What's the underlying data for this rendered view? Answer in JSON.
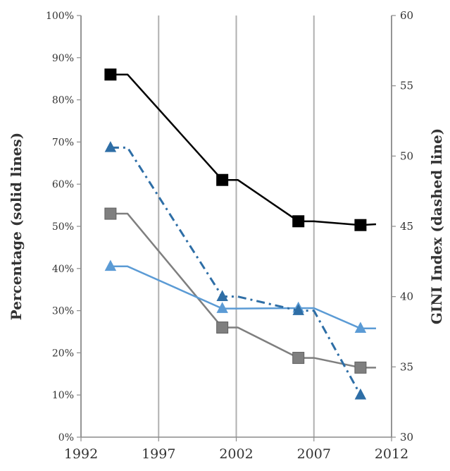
{
  "chart_data": {
    "type": "line",
    "xlim": [
      1992,
      2012
    ],
    "xticks": [
      1992,
      1997,
      2002,
      2007,
      2012
    ],
    "y_left": {
      "label": "Percentage (solid lines)",
      "range": [
        0,
        100
      ],
      "ticks": [
        0,
        10,
        20,
        30,
        40,
        50,
        60,
        70,
        80,
        90,
        100
      ],
      "tick_labels": [
        "0%",
        "10%",
        "20%",
        "30%",
        "40%",
        "50%",
        "60%",
        "70%",
        "80%",
        "90%",
        "100%"
      ]
    },
    "y_right": {
      "label": "GINI Index (dashed line)",
      "range": [
        30,
        60
      ],
      "ticks": [
        30,
        35,
        40,
        45,
        50,
        55,
        60
      ],
      "tick_labels": [
        "30",
        "35",
        "40",
        "45",
        "50",
        "55",
        "60"
      ]
    },
    "grid": "vertical",
    "series": [
      {
        "axis": "left",
        "style": "solid",
        "marker": "square",
        "color": "#000000",
        "x": [
          1993.9,
          2001.1,
          2006.0,
          2010.0
        ],
        "y": [
          86,
          61,
          51.2,
          50.3
        ],
        "end_x": 2011.0,
        "end_y": 50.5
      },
      {
        "axis": "left",
        "style": "solid",
        "marker": "square",
        "color": "#7f7f7f",
        "x": [
          1993.9,
          2001.1,
          2006.0,
          2010.0
        ],
        "y": [
          53,
          26,
          18.8,
          16.5
        ],
        "end_x": 2011.0,
        "end_y": 16.5
      },
      {
        "axis": "left",
        "style": "solid",
        "marker": "triangle",
        "color": "#5b9bd5",
        "x": [
          1993.9,
          2001.1,
          2006.0,
          2010.0
        ],
        "y": [
          40.5,
          30.5,
          30.6,
          25.8
        ],
        "end_x": 2011.0,
        "end_y": 25.8
      },
      {
        "axis": "right",
        "style": "dash-dot",
        "marker": "triangle",
        "color": "#2e6ea6",
        "x": [
          1993.9,
          2001.1,
          2006.0,
          2010.0
        ],
        "y": [
          50.6,
          40.0,
          39.0,
          33.0
        ]
      }
    ]
  }
}
